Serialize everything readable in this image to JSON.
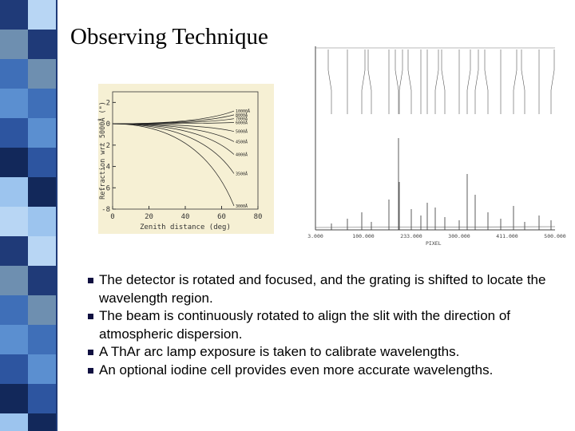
{
  "title": "Observing Technique",
  "figure_refraction": {
    "y_label": "Refraction wrt 5000Å (\")",
    "x_label": "Zenith distance (deg)",
    "ylim": [
      -8,
      3
    ],
    "yticks": [
      2,
      0,
      -2,
      -4,
      -6,
      -8
    ],
    "xlim": [
      0,
      80
    ],
    "xticks": [
      0,
      20,
      40,
      60,
      80
    ],
    "curve_labels": [
      "10000Å",
      "8000Å",
      "7000Å",
      "6000Å",
      "5000Å",
      "4500Å",
      "4000Å",
      "3500Å",
      "3000Å"
    ]
  },
  "figure_spectrum": {
    "x_label": "PIXEL",
    "xticks": [
      "3.000",
      "100.000",
      "233.000",
      "300.000",
      "411.000",
      "500.000"
    ]
  },
  "bullets": [
    "The detector is rotated and focused, and the grating is shifted to locate the wavelength region.",
    "The beam is continuously rotated to align the slit with the direction of atmospheric dispersion.",
    "A ThAr arc lamp exposure is taken to calibrate wavelengths.",
    "An optional iodine cell provides even more accurate wavelengths."
  ]
}
